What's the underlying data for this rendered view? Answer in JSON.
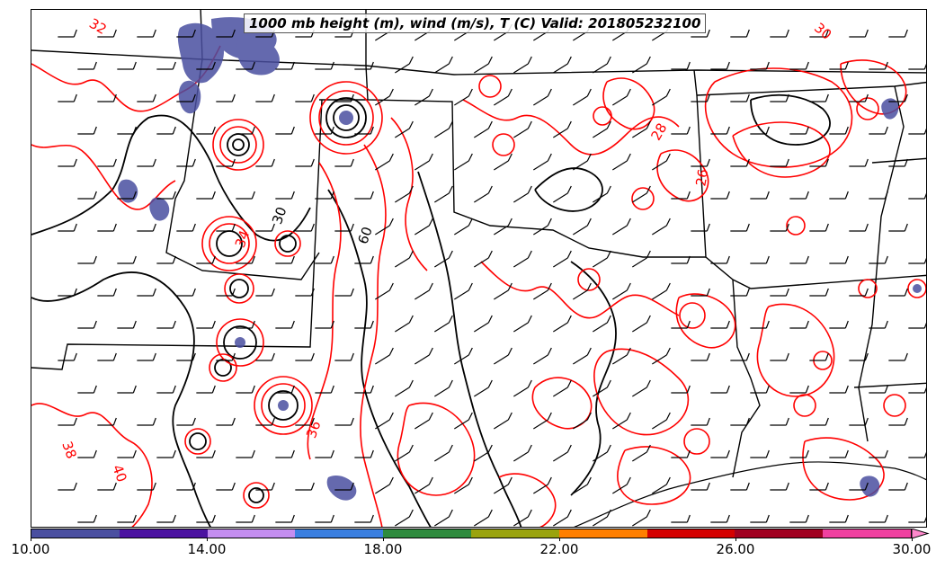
{
  "title": "1000 mb height (m), wind (m/s), T (C) Valid: 201805232100",
  "colorbar": {
    "min": 10,
    "max": 31,
    "tick_labels": [
      "10.00",
      "14.00",
      "18.00",
      "22.00",
      "26.00",
      "30.00"
    ],
    "tick_values": [
      10,
      14,
      18,
      22,
      26,
      30
    ],
    "colors": [
      "#4a4fa0",
      "#4b12a0",
      "#c48ef0",
      "#3a7fe0",
      "#2e8b3e",
      "#9aa30e",
      "#ff7f00",
      "#d40000",
      "#a00020",
      "#f040a0"
    ],
    "extend_color": "#ff88cc"
  },
  "contour_labels": {
    "temperature": [
      "32",
      "30",
      "28",
      "26",
      "34",
      "36",
      "38",
      "40"
    ],
    "height": [
      "60",
      "30"
    ]
  },
  "colors": {
    "temperature_contour": "#ff0000",
    "height_contour": "#000000",
    "borders": "#000000",
    "precip_shade": "#4a4fa0"
  }
}
